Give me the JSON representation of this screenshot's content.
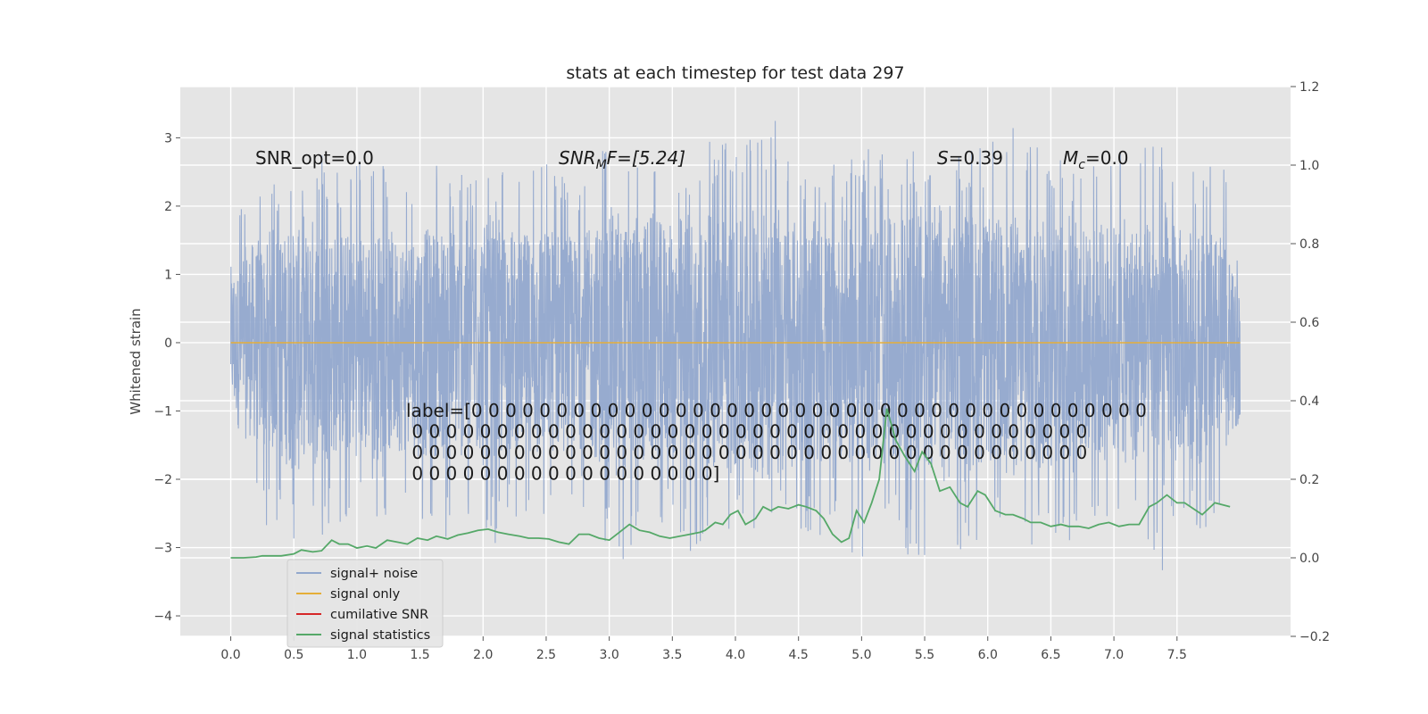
{
  "chart_data": {
    "type": "line",
    "title": "stats at each timestep for test data 297",
    "ylabel": "Whitened strain",
    "xlabel": "",
    "xlim": [
      -0.4,
      8.4
    ],
    "ylim": [
      -4.3,
      3.75
    ],
    "y2lim": [
      -0.2,
      1.2
    ],
    "x_ticks": [
      "0.0",
      "0.5",
      "1.0",
      "1.5",
      "2.0",
      "2.5",
      "3.0",
      "3.5",
      "4.0",
      "4.5",
      "5.0",
      "5.5",
      "6.0",
      "6.5",
      "7.0",
      "7.5"
    ],
    "x_tick_values": [
      0,
      0.5,
      1,
      1.5,
      2,
      2.5,
      3,
      3.5,
      4,
      4.5,
      5,
      5.5,
      6,
      6.5,
      7,
      7.5
    ],
    "y_ticks": [
      "3",
      "2",
      "1",
      "0",
      "−1",
      "−2",
      "−3",
      "−4"
    ],
    "y_tick_values": [
      3,
      2,
      1,
      0,
      -1,
      -2,
      -3,
      -4
    ],
    "y2_ticks": [
      "1.2",
      "1.0",
      "0.8",
      "0.6",
      "0.4",
      "0.2",
      "0.0",
      "−0.2"
    ],
    "y2_tick_values": [
      1.2,
      1.0,
      0.8,
      0.6,
      0.4,
      0.2,
      0.0,
      -0.2
    ],
    "grid": true,
    "legend_position": "lower-left",
    "annotations": {
      "snr_opt": "SNR_opt=0.0",
      "snr_mf_main": "SNR",
      "snr_mf_sub": "M",
      "snr_mf_rest": "F=[5.24]",
      "s_var": "S",
      "s_rest": "=0.39",
      "mc_var": "M",
      "mc_sub": "c",
      "mc_rest": "=0.0",
      "label_lines": [
        "label=[0 0 0 0 0 0 0 0 0 0 0 0 0 0 0 0 0 0 0 0 0 0 0 0 0 0 0 0 0 0 0 0 0 0 0 0 0 0 0 0",
        " 0 0 0 0 0 0 0 0 0 0 0 0 0 0 0 0 0 0 0 0 0 0 0 0 0 0 0 0 0 0 0 0 0 0 0 0 0 0 0 0",
        " 0 0 0 0 0 0 0 0 0 0 0 0 0 0 0 0 0 0 0 0 0 0 0 0 0 0 0 0 0 0 0 0 0 0 0 0 0 0 0 0",
        " 0 0 0 0 0 0 0 0 0 0 0 0 0 0 0 0 0 0]"
      ]
    },
    "series": [
      {
        "name": "signal+ noise",
        "color": "#92a8cd",
        "x_range": [
          0,
          8.0
        ],
        "samples": 4096,
        "upper_envelope": [
          1.8,
          2.4,
          2.3,
          2.6,
          2.7,
          2.8,
          2.6,
          2.7,
          2.8,
          2.6,
          2.7,
          2.7,
          2.6,
          2.5,
          2.8,
          2.6,
          2.5,
          2.7,
          2.6,
          2.5,
          2.8,
          3.0,
          2.7,
          3.1,
          2.8,
          2.5,
          3.0,
          3.2,
          3.1,
          3.4,
          3.3,
          2.8,
          2.8,
          2.6,
          2.7,
          2.9,
          3.0,
          2.8,
          2.9,
          2.7,
          2.8,
          2.9,
          3.0,
          3.3,
          3.2,
          2.9,
          2.6,
          2.7,
          2.8,
          2.9,
          2.9,
          3.0,
          2.7,
          2.7,
          2.6,
          2.4
        ],
        "lower_envelope": [
          -1.3,
          -2.2,
          -2.7,
          -2.9,
          -3.2,
          -2.9,
          -2.7,
          -2.6,
          -2.6,
          -2.5,
          -2.8,
          -2.7,
          -2.9,
          -2.9,
          -3.1,
          -2.8,
          -2.6,
          -3.0,
          -2.7,
          -2.5,
          -2.8,
          -3.4,
          -3.0,
          -2.9,
          -2.8,
          -3.2,
          -2.9,
          -2.7,
          -2.9,
          -2.7,
          -2.8,
          -2.8,
          -2.9,
          -2.6,
          -3.1,
          -3.2,
          -2.9,
          -3.1,
          -3.4,
          -3.3,
          -3.4,
          -2.9,
          -2.6,
          -2.9,
          -3.0,
          -2.8,
          -3.2,
          -2.6,
          -3.0,
          -2.9,
          -2.8,
          -3.5,
          -2.6,
          -2.9,
          -2.5,
          -1.4
        ],
        "envelope_x_step": 0.145
      },
      {
        "name": "signal only",
        "color": "#e5ae38",
        "x": [
          0,
          8.0
        ],
        "y": [
          0,
          0
        ]
      },
      {
        "name": "cumilative SNR",
        "color": "#d62728",
        "x": [],
        "y": []
      },
      {
        "name": "signal statistics",
        "color": "#55a868",
        "axis": "right",
        "x": [
          0.0,
          0.1,
          0.2,
          0.25,
          0.3,
          0.4,
          0.5,
          0.56,
          0.65,
          0.72,
          0.8,
          0.86,
          0.93,
          1.0,
          1.08,
          1.15,
          1.24,
          1.32,
          1.4,
          1.48,
          1.56,
          1.63,
          1.72,
          1.8,
          1.88,
          1.96,
          2.04,
          2.12,
          2.2,
          2.29,
          2.36,
          2.44,
          2.52,
          2.6,
          2.68,
          2.76,
          2.84,
          2.92,
          3.0,
          3.08,
          3.16,
          3.24,
          3.32,
          3.4,
          3.48,
          3.56,
          3.64,
          3.72,
          3.76,
          3.84,
          3.9,
          3.96,
          4.02,
          4.08,
          4.16,
          4.22,
          4.28,
          4.34,
          4.42,
          4.5,
          4.56,
          4.64,
          4.7,
          4.77,
          4.84,
          4.9,
          4.96,
          5.02,
          5.08,
          5.14,
          5.2,
          5.27,
          5.34,
          5.42,
          5.48,
          5.55,
          5.62,
          5.7,
          5.78,
          5.84,
          5.92,
          5.98,
          6.06,
          6.14,
          6.2,
          6.28,
          6.34,
          6.42,
          6.5,
          6.58,
          6.64,
          6.72,
          6.8,
          6.88,
          6.96,
          7.04,
          7.12,
          7.2,
          7.28,
          7.34,
          7.42,
          7.5,
          7.56,
          7.63,
          7.7,
          7.8,
          7.92
        ],
        "y": [
          0.0,
          0.0,
          0.002,
          0.005,
          0.005,
          0.005,
          0.01,
          0.02,
          0.015,
          0.018,
          0.045,
          0.035,
          0.035,
          0.025,
          0.03,
          0.025,
          0.045,
          0.04,
          0.035,
          0.05,
          0.045,
          0.055,
          0.048,
          0.058,
          0.063,
          0.07,
          0.073,
          0.065,
          0.06,
          0.055,
          0.05,
          0.05,
          0.048,
          0.04,
          0.035,
          0.06,
          0.06,
          0.05,
          0.045,
          0.065,
          0.085,
          0.07,
          0.065,
          0.055,
          0.05,
          0.055,
          0.06,
          0.065,
          0.07,
          0.09,
          0.085,
          0.11,
          0.12,
          0.085,
          0.1,
          0.13,
          0.12,
          0.13,
          0.125,
          0.135,
          0.13,
          0.12,
          0.1,
          0.06,
          0.04,
          0.05,
          0.12,
          0.09,
          0.14,
          0.2,
          0.38,
          0.3,
          0.26,
          0.22,
          0.27,
          0.24,
          0.17,
          0.18,
          0.14,
          0.13,
          0.17,
          0.16,
          0.12,
          0.11,
          0.11,
          0.1,
          0.09,
          0.09,
          0.08,
          0.085,
          0.08,
          0.08,
          0.075,
          0.085,
          0.09,
          0.08,
          0.085,
          0.085,
          0.13,
          0.14,
          0.16,
          0.14,
          0.14,
          0.125,
          0.11,
          0.14,
          0.13
        ]
      }
    ]
  }
}
